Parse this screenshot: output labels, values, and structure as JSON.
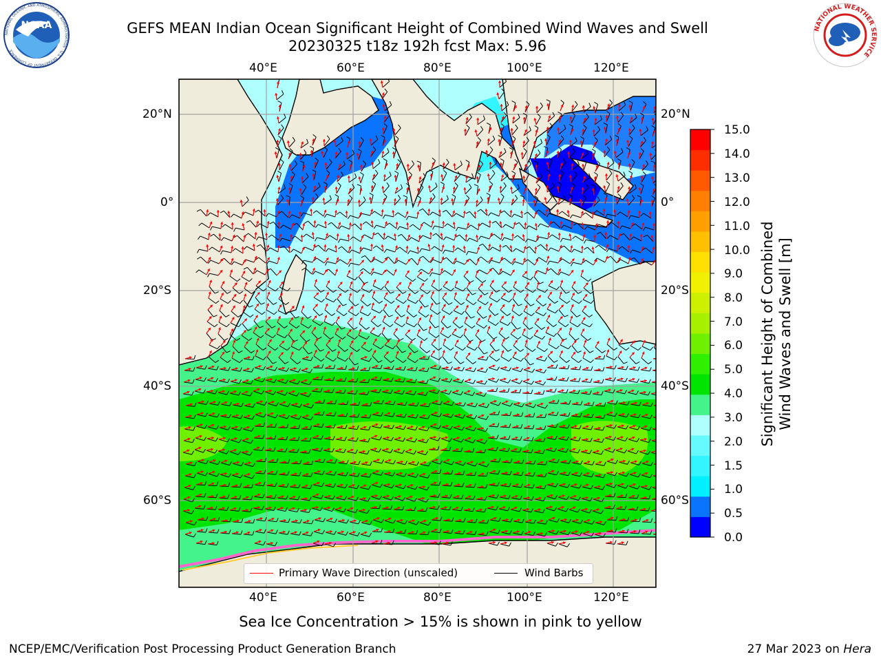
{
  "header": {
    "title_line1": "GEFS MEAN Indian Ocean Significant Height of Combined Wind Waves and Swell",
    "title_line2": "20230325 t18z 192h fcst   Max: 5.96"
  },
  "logos": {
    "left": "NOAA",
    "left_ring": "NATIONAL OCEANIC AND ATMOSPHERIC ADMINISTRATION · U.S. DEPARTMENT OF COMMERCE",
    "right_ring": "NATIONAL WEATHER SERVICE"
  },
  "map": {
    "lon_labels_top": [
      "40°E",
      "60°E",
      "80°E",
      "100°E",
      "120°E"
    ],
    "lon_labels_bottom": [
      "40°E",
      "60°E",
      "80°E",
      "100°E",
      "120°E"
    ],
    "lat_labels_left": [
      "20°N",
      "0°",
      "20°S",
      "40°S",
      "60°S"
    ],
    "lat_labels_right": [
      "20°N",
      "0°",
      "20°S",
      "40°S",
      "60°S"
    ],
    "colors": {
      "land": "#efecdc",
      "wave_arrow": "#ff0000",
      "barb": "#000000"
    }
  },
  "legend": {
    "primary_wave": "Primary Wave Direction (unscaled)",
    "wind_barbs": "Wind Barbs"
  },
  "colorbar": {
    "label_line1": "Significant Height of Combined",
    "label_line2": "Wind Waves and Swell [m]",
    "ticks": [
      "15.0",
      "14.0",
      "13.0",
      "12.0",
      "11.0",
      "10.0",
      "9.0",
      "8.0",
      "7.0",
      "6.0",
      "5.0",
      "4.0",
      "3.0",
      "2.0",
      "1.5",
      "1.0",
      "0.5",
      "0.0"
    ],
    "colors": [
      "#0000ff",
      "#0a74ff",
      "#00f0ff",
      "#33f5ff",
      "#66faff",
      "#b0ffff",
      "#44f48a",
      "#00e400",
      "#2ef000",
      "#6ef000",
      "#a6f000",
      "#ccf000",
      "#f0f000",
      "#ffe000",
      "#ffc000",
      "#ffa000",
      "#ff8000",
      "#ff5a00",
      "#ff2e00",
      "#ff0000"
    ]
  },
  "footer": {
    "caption": "Sea Ice Concentration > 15% is shown in pink to yellow",
    "left": "NCEP/EMC/Verification Post Processing Product Generation Branch",
    "date": "27 Mar 2023 on",
    "machine": "Hera"
  }
}
